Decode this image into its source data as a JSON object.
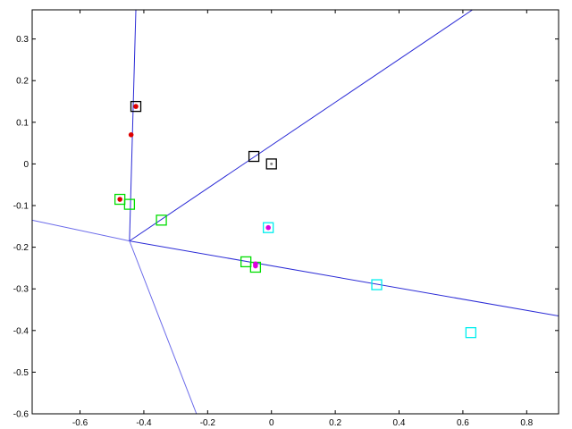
{
  "chart_data": {
    "type": "scatter",
    "title": "",
    "xlabel": "",
    "ylabel": "",
    "xlim": [
      -0.75,
      0.9
    ],
    "ylim": [
      -0.6,
      0.37
    ],
    "grid": false,
    "x_ticks": [
      -0.6,
      -0.4,
      -0.2,
      0,
      0.2,
      0.4,
      0.6,
      0.8
    ],
    "x_tick_labels": [
      "-0.6",
      "-0.4",
      "-0.2",
      "0",
      "0.2",
      "0.4",
      "0.6",
      "0.8"
    ],
    "y_ticks": [
      0.3,
      0.2,
      0.1,
      0,
      -0.1,
      -0.2,
      -0.3,
      -0.4,
      -0.5,
      -0.6
    ],
    "y_tick_labels": [
      "0.3",
      "0.2",
      "0.1",
      "0",
      "-0.1",
      "-0.2",
      "-0.3",
      "-0.4",
      "-0.5",
      "-0.6"
    ],
    "lines": [
      {
        "color": "#2b2bd6",
        "points": [
          [
            -0.445,
            -0.185
          ],
          [
            -0.425,
            0.37
          ]
        ]
      },
      {
        "color": "#2b2bd6",
        "points": [
          [
            -0.445,
            -0.185
          ],
          [
            0.63,
            0.37
          ]
        ]
      },
      {
        "color": "#2b2bd6",
        "points": [
          [
            -0.445,
            -0.185
          ],
          [
            0.9,
            -0.365
          ]
        ]
      },
      {
        "color": "#6b6bea",
        "points": [
          [
            -0.445,
            -0.185
          ],
          [
            -0.75,
            -0.135
          ]
        ]
      },
      {
        "color": "#6b6bea",
        "points": [
          [
            -0.445,
            -0.185
          ],
          [
            -0.235,
            -0.6
          ]
        ]
      }
    ],
    "series": [
      {
        "marker": "square",
        "color": "#000000",
        "points": [
          [
            -0.425,
            0.138
          ],
          [
            -0.055,
            0.018
          ],
          [
            0.0,
            0.0
          ]
        ]
      },
      {
        "marker": "square",
        "color": "#00dd00",
        "points": [
          [
            -0.475,
            -0.085
          ],
          [
            -0.445,
            -0.097
          ],
          [
            -0.345,
            -0.135
          ],
          [
            -0.08,
            -0.235
          ],
          [
            -0.05,
            -0.248
          ]
        ]
      },
      {
        "marker": "square",
        "color": "#00eeee",
        "points": [
          [
            -0.01,
            -0.153
          ],
          [
            0.33,
            -0.29
          ],
          [
            0.625,
            -0.405
          ]
        ]
      },
      {
        "marker": "dot",
        "color": "#dd0000",
        "points": [
          [
            -0.425,
            0.138
          ],
          [
            -0.44,
            0.07
          ],
          [
            -0.475,
            -0.085
          ]
        ]
      },
      {
        "marker": "dot",
        "color": "#dd00dd",
        "points": [
          [
            -0.01,
            -0.153
          ],
          [
            -0.05,
            -0.24
          ],
          [
            -0.05,
            -0.245
          ]
        ]
      },
      {
        "marker": "dot",
        "color": "#888888",
        "points": [
          [
            0.0,
            0.0
          ]
        ]
      }
    ]
  }
}
